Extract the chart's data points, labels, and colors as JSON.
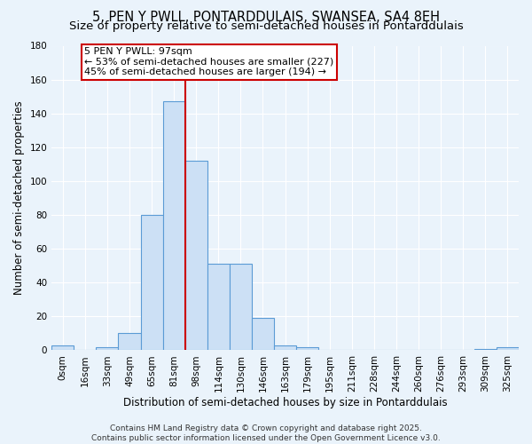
{
  "title1": "5, PEN Y PWLL, PONTARDDULAIS, SWANSEA, SA4 8EH",
  "title2": "Size of property relative to semi-detached houses in Pontarddulais",
  "xlabel": "Distribution of semi-detached houses by size in Pontarddulais",
  "ylabel": "Number of semi-detached properties",
  "bin_labels": [
    "0sqm",
    "16sqm",
    "33sqm",
    "49sqm",
    "65sqm",
    "81sqm",
    "98sqm",
    "114sqm",
    "130sqm",
    "146sqm",
    "163sqm",
    "179sqm",
    "195sqm",
    "211sqm",
    "228sqm",
    "244sqm",
    "260sqm",
    "276sqm",
    "293sqm",
    "309sqm",
    "325sqm"
  ],
  "bar_values": [
    3,
    0,
    2,
    10,
    80,
    147,
    112,
    51,
    51,
    19,
    3,
    2,
    0,
    0,
    0,
    0,
    0,
    0,
    0,
    1,
    2
  ],
  "bar_color": "#cce0f5",
  "bar_edge_color": "#5b9bd5",
  "property_label": "5 PEN Y PWLL: 97sqm",
  "annotation_line1": "← 53% of semi-detached houses are smaller (227)",
  "annotation_line2": "45% of semi-detached houses are larger (194) →",
  "vline_color": "#cc0000",
  "vline_x": 5.5,
  "annotation_box_facecolor": "#ffffff",
  "annotation_box_edgecolor": "#cc0000",
  "ylim": [
    0,
    180
  ],
  "yticks": [
    0,
    20,
    40,
    60,
    80,
    100,
    120,
    140,
    160,
    180
  ],
  "footer1": "Contains HM Land Registry data © Crown copyright and database right 2025.",
  "footer2": "Contains public sector information licensed under the Open Government Licence v3.0.",
  "bg_color": "#eaf3fb",
  "grid_color": "#ffffff",
  "title_fontsize": 10.5,
  "subtitle_fontsize": 9.5,
  "axis_label_fontsize": 8.5,
  "tick_fontsize": 7.5,
  "footer_fontsize": 6.5,
  "annotation_fontsize": 8
}
